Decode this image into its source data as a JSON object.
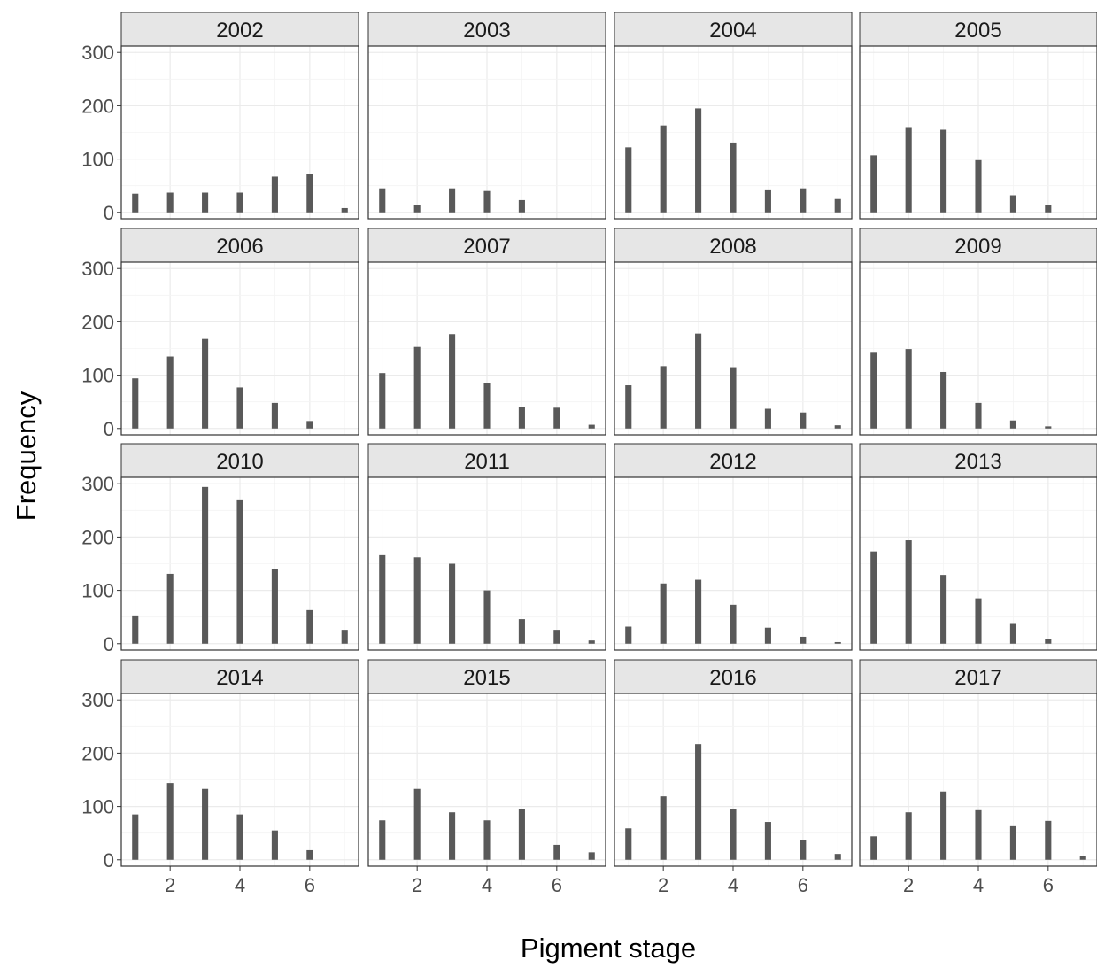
{
  "chart_data": {
    "type": "bar",
    "facet_by": "year",
    "xlabel": "Pigment stage",
    "ylabel": "Frequency",
    "xlim": [
      0.6,
      7.4
    ],
    "ylim": [
      -12,
      312
    ],
    "x_ticks": [
      2,
      4,
      6
    ],
    "y_ticks": [
      0,
      100,
      200,
      300
    ],
    "grid": true,
    "bar_color": "#595959",
    "strip_fill": "#e6e6e6",
    "x": [
      1,
      2,
      3,
      4,
      5,
      6,
      7
    ],
    "panels": [
      {
        "year": "2002",
        "values": [
          35,
          37,
          37,
          37,
          67,
          72,
          8
        ]
      },
      {
        "year": "2003",
        "values": [
          45,
          13,
          45,
          40,
          23,
          0,
          0
        ]
      },
      {
        "year": "2004",
        "values": [
          122,
          163,
          195,
          131,
          43,
          45,
          25
        ]
      },
      {
        "year": "2005",
        "values": [
          107,
          160,
          155,
          98,
          32,
          13,
          0
        ]
      },
      {
        "year": "2006",
        "values": [
          94,
          135,
          168,
          77,
          48,
          14,
          0
        ]
      },
      {
        "year": "2007",
        "values": [
          104,
          153,
          177,
          85,
          40,
          39,
          7
        ]
      },
      {
        "year": "2008",
        "values": [
          81,
          117,
          178,
          115,
          37,
          30,
          6
        ]
      },
      {
        "year": "2009",
        "values": [
          142,
          149,
          106,
          48,
          15,
          4,
          0
        ]
      },
      {
        "year": "2010",
        "values": [
          53,
          131,
          294,
          269,
          140,
          63,
          26
        ]
      },
      {
        "year": "2011",
        "values": [
          166,
          162,
          150,
          100,
          46,
          26,
          6
        ]
      },
      {
        "year": "2012",
        "values": [
          32,
          113,
          120,
          73,
          30,
          13,
          3
        ]
      },
      {
        "year": "2013",
        "values": [
          173,
          194,
          129,
          85,
          37,
          8,
          0
        ]
      },
      {
        "year": "2014",
        "values": [
          85,
          144,
          133,
          85,
          55,
          18,
          0
        ]
      },
      {
        "year": "2015",
        "values": [
          74,
          133,
          89,
          74,
          96,
          28,
          14
        ]
      },
      {
        "year": "2016",
        "values": [
          59,
          119,
          217,
          96,
          71,
          37,
          11
        ]
      },
      {
        "year": "2017",
        "values": [
          44,
          89,
          128,
          93,
          63,
          73,
          7
        ]
      }
    ]
  }
}
